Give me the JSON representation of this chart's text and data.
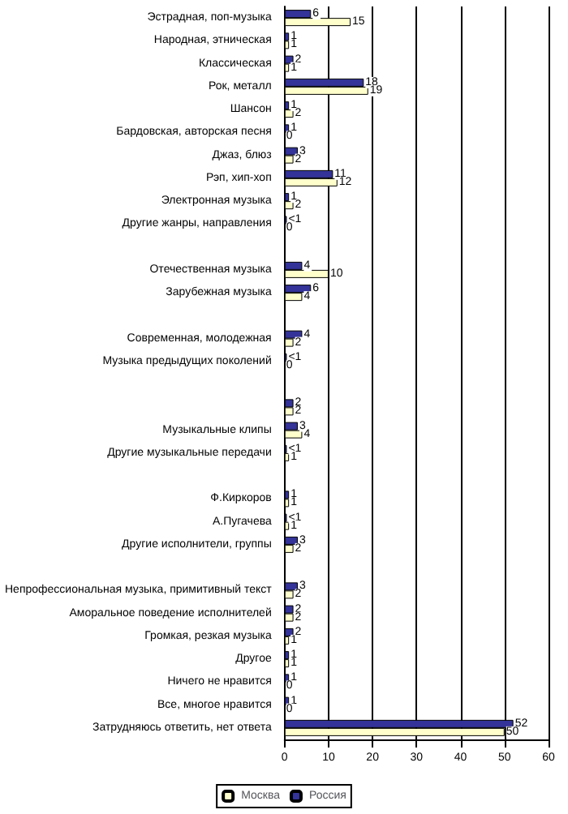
{
  "chart_data": {
    "type": "bar",
    "orientation": "horizontal",
    "categories": [
      "Эстрадная, поп-музыка",
      "Народная, этническая",
      "Классическая",
      "Рок, металл",
      "Шансон",
      "Бардовская, авторская песня",
      "Джаз, блюз",
      "Рэп, хип-хоп",
      "Электронная музыка",
      "Другие жанры, направления",
      null,
      "Отечественная музыка",
      "Зарубежная музыка",
      null,
      "Современная, молодежная",
      "Музыка предыдущих поколений",
      null,
      null,
      "Музыкальные клипы",
      "Другие музыкальные передачи",
      null,
      "Ф.Киркоров",
      "А.Пугачева",
      "Другие исполнители, группы",
      null,
      "Непрофессиональная музыка, примитивный текст",
      "Аморальное поведение исполнителей",
      "Громкая, резкая музыка",
      "Другое",
      "Ничего не нравится",
      "Все, многое нравится",
      "Затрудняюсь ответить, нет ответа"
    ],
    "series": [
      {
        "name": "Россия",
        "color": "#333399",
        "values": [
          6,
          1,
          2,
          18,
          1,
          1,
          3,
          11,
          1,
          0.5,
          null,
          4,
          6,
          null,
          4,
          0.5,
          null,
          2,
          3,
          0.5,
          null,
          1,
          0.5,
          3,
          null,
          3,
          2,
          2,
          1,
          1,
          1,
          52
        ],
        "value_labels": [
          "6",
          "1",
          "2",
          "18",
          "1",
          "1",
          "3",
          "11",
          "1",
          "<1",
          null,
          "4",
          "6",
          null,
          "4",
          "<1",
          null,
          "2",
          "3",
          "<1",
          null,
          "1",
          "<1",
          "3",
          null,
          "3",
          "2",
          "2",
          "1",
          "1",
          "1",
          "52"
        ]
      },
      {
        "name": "Москва",
        "color": "#ffffcc",
        "values": [
          15,
          1,
          1,
          19,
          2,
          0,
          2,
          12,
          2,
          0,
          null,
          10,
          4,
          null,
          2,
          0,
          null,
          2,
          4,
          1,
          null,
          1,
          1,
          2,
          null,
          2,
          2,
          1,
          1,
          0,
          0,
          50
        ],
        "value_labels": [
          "15",
          "1",
          "1",
          "19",
          "2",
          "0",
          "2",
          "12",
          "2",
          "0",
          null,
          "10",
          "4",
          null,
          "2",
          "0",
          null,
          "2",
          "4",
          "1",
          null,
          "1",
          "1",
          "2",
          null,
          "2",
          "2",
          "1",
          "1",
          "0",
          "0",
          "50"
        ]
      }
    ],
    "xlim": [
      0,
      60
    ],
    "xticks": [
      0,
      10,
      20,
      30,
      40,
      50,
      60
    ],
    "grid": "x",
    "legend": "bottom"
  }
}
